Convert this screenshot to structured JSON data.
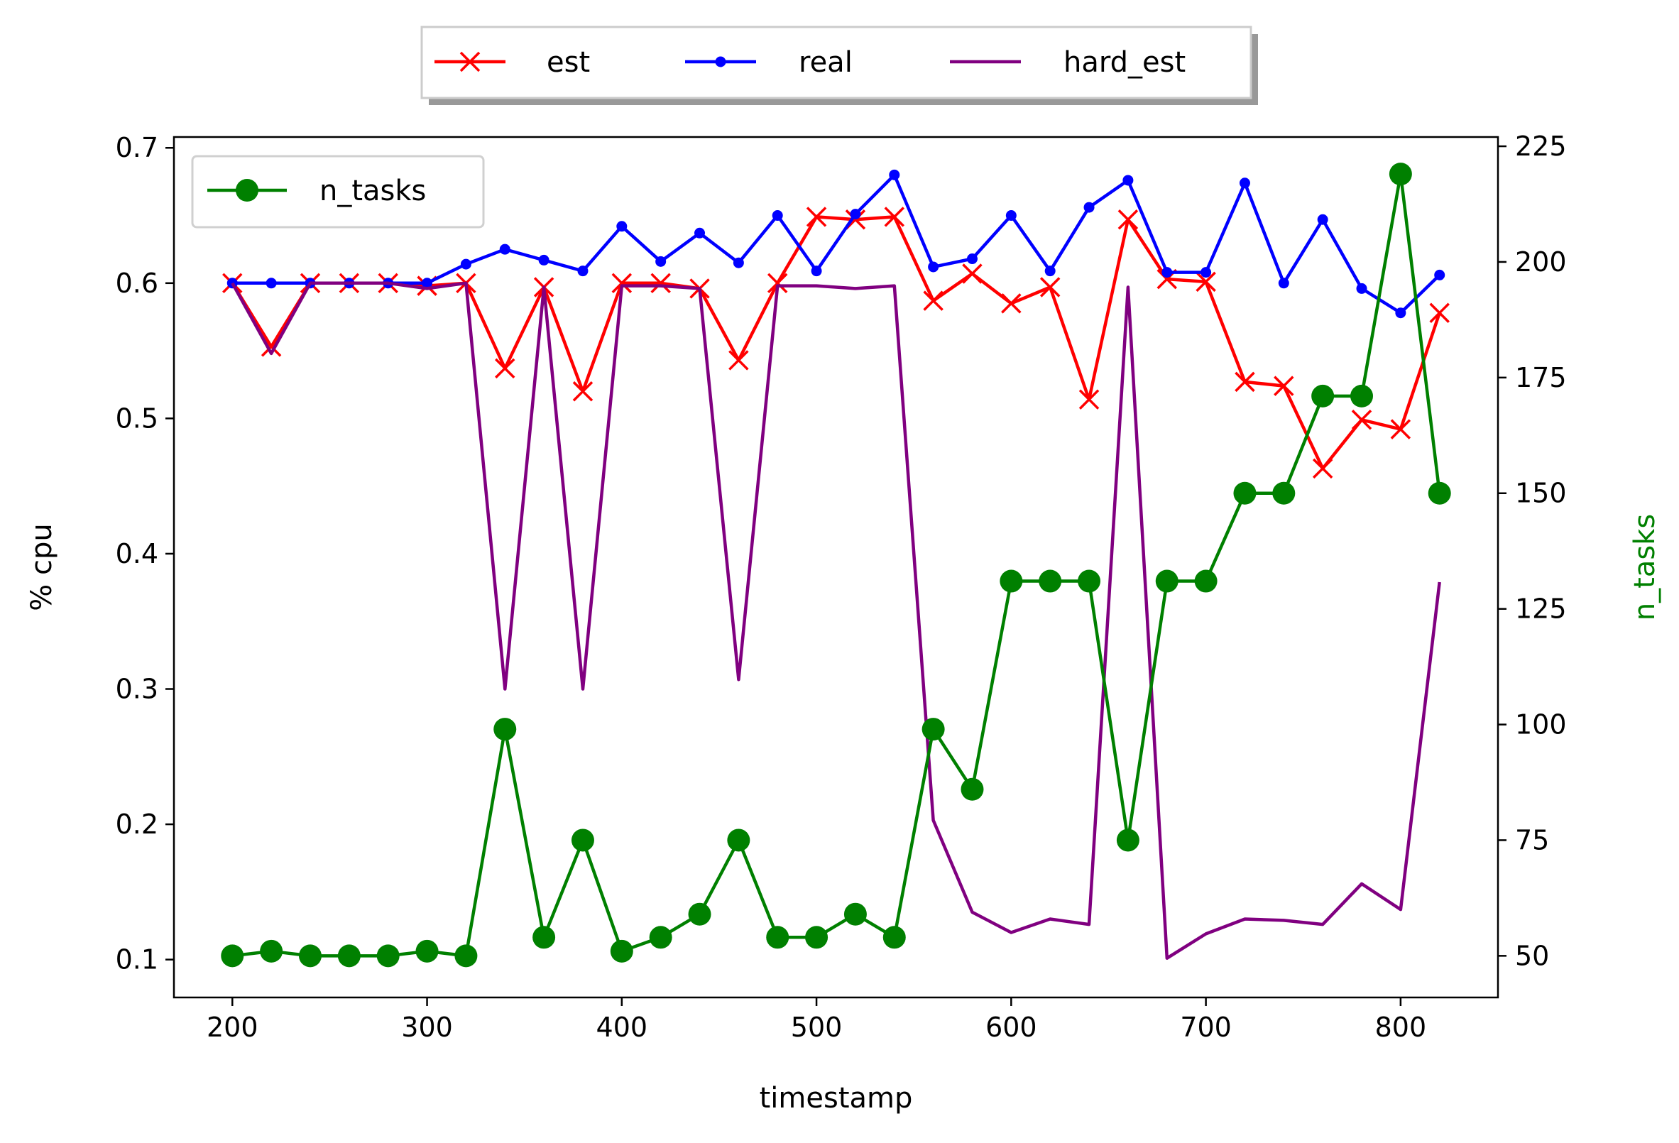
{
  "chart_data": {
    "type": "line",
    "xlabel": "timestamp",
    "ylabel": "% cpu",
    "y2label": "n_tasks",
    "xlim": [
      170,
      850
    ],
    "ylim": [
      0.072,
      0.708
    ],
    "y2lim": [
      41,
      227
    ],
    "xticks": [
      200,
      300,
      400,
      500,
      600,
      700,
      800
    ],
    "yticks": [
      "0.1",
      "0.2",
      "0.3",
      "0.4",
      "0.5",
      "0.6",
      "0.7"
    ],
    "y2ticks": [
      "50",
      "75",
      "100",
      "125",
      "150",
      "175",
      "200",
      "225"
    ],
    "x": [
      200,
      220,
      240,
      260,
      280,
      300,
      320,
      340,
      360,
      380,
      400,
      420,
      440,
      460,
      480,
      500,
      520,
      540,
      560,
      580,
      600,
      620,
      640,
      660,
      680,
      700,
      720,
      740,
      760,
      780,
      800,
      820
    ],
    "series": [
      {
        "name": "est",
        "axis": "left",
        "color": "#ff0000",
        "marker": "x",
        "values": [
          0.6,
          0.553,
          0.6,
          0.6,
          0.6,
          0.598,
          0.6,
          0.537,
          0.597,
          0.52,
          0.6,
          0.6,
          0.596,
          0.543,
          0.6,
          0.649,
          0.647,
          0.649,
          0.587,
          0.607,
          0.585,
          0.597,
          0.514,
          0.647,
          0.603,
          0.601,
          0.527,
          0.524,
          0.463,
          0.499,
          0.492,
          0.578
        ]
      },
      {
        "name": "real",
        "axis": "left",
        "color": "#0000ff",
        "marker": "dot",
        "values": [
          0.6,
          0.6,
          0.6,
          0.6,
          0.6,
          0.6,
          0.614,
          0.625,
          0.617,
          0.609,
          0.642,
          0.616,
          0.637,
          0.615,
          0.65,
          0.609,
          0.651,
          0.68,
          0.612,
          0.618,
          0.65,
          0.609,
          0.656,
          0.676,
          0.608,
          0.608,
          0.674,
          0.6,
          0.647,
          0.596,
          0.578,
          0.606
        ]
      },
      {
        "name": "hard_est",
        "axis": "left",
        "color": "#800080",
        "marker": "none",
        "values": [
          0.6,
          0.548,
          0.6,
          0.6,
          0.6,
          0.596,
          0.6,
          0.3,
          0.597,
          0.3,
          0.598,
          0.598,
          0.596,
          0.307,
          0.598,
          0.598,
          0.596,
          0.598,
          0.203,
          0.135,
          0.12,
          0.13,
          0.126,
          0.597,
          0.101,
          0.119,
          0.13,
          0.129,
          0.126,
          0.156,
          0.137,
          0.379
        ]
      },
      {
        "name": "n_tasks",
        "axis": "right",
        "color": "#008000",
        "marker": "circle",
        "values": [
          50,
          51,
          50,
          50,
          50,
          51,
          50,
          99,
          54,
          75,
          51,
          54,
          59,
          75,
          54,
          54,
          59,
          54,
          99,
          86,
          131,
          131,
          131,
          75,
          131,
          131,
          150,
          150,
          171,
          171,
          219,
          150
        ]
      }
    ],
    "legend": {
      "top": [
        "est",
        "real",
        "hard_est"
      ],
      "top_placement": "above plot, centered, 3 columns, with shadow",
      "inner": [
        "n_tasks"
      ],
      "inner_placement": "upper left"
    },
    "grid": false
  }
}
